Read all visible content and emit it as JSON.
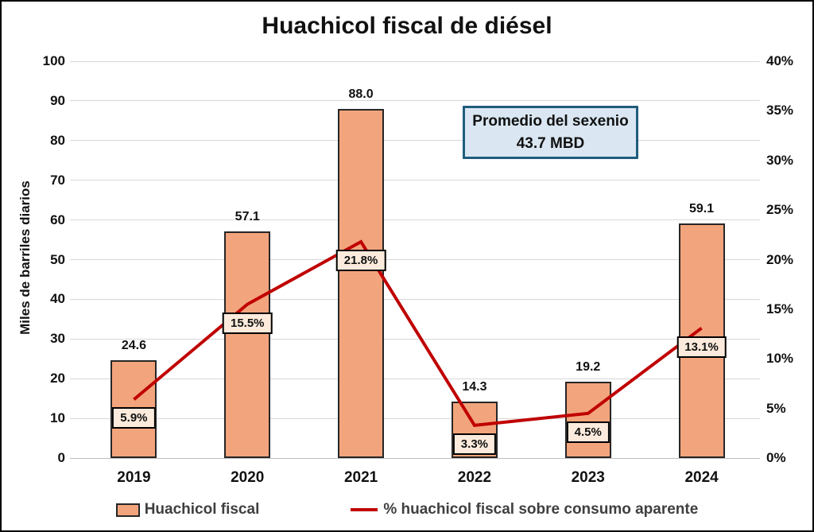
{
  "title": "Huachicol fiscal de diésel",
  "y_left_title": "Miles de barriles diarios",
  "annotation": {
    "line1": "Promedio del sexenio",
    "line2": "43.7 MBD"
  },
  "legend": [
    {
      "label": "Huachicol fiscal",
      "type": "bar"
    },
    {
      "label": "% huachicol fiscal sobre consumo aparente",
      "type": "line"
    }
  ],
  "colors": {
    "bar_fill": "#F2A47C",
    "bar_border": "#262626",
    "line": "#C00000",
    "pct_label_fill": "#FCEBDC",
    "pct_label_border": "#000000",
    "annotation_fill": "#DAE7F2",
    "annotation_border": "#1F5C7D",
    "gridline": "#D8D8D8",
    "axis_line": "#BFBFBF",
    "legend_text": "#3F3F3F"
  },
  "chart_data": {
    "type": "bar",
    "subtype": "bar-with-line-overlay",
    "categories": [
      "2019",
      "2020",
      "2021",
      "2022",
      "2023",
      "2024"
    ],
    "series": [
      {
        "name": "Huachicol fiscal",
        "type": "bar",
        "axis": "left",
        "values": [
          24.6,
          57.1,
          88.0,
          14.3,
          19.2,
          59.1
        ],
        "labels": [
          "24.6",
          "57.1",
          "88.0",
          "14.3",
          "19.2",
          "59.1"
        ]
      },
      {
        "name": "% huachicol fiscal sobre consumo aparente",
        "type": "line",
        "axis": "right",
        "values": [
          5.9,
          15.5,
          21.8,
          3.3,
          4.5,
          13.1
        ],
        "labels": [
          "5.9%",
          "15.5%",
          "21.8%",
          "3.3%",
          "4.5%",
          "13.1%"
        ]
      }
    ],
    "title": "Huachicol fiscal de diésel",
    "xlabel": "",
    "ylabel_left": "Miles de barriles diarios",
    "ylabel_right": "",
    "y_left": {
      "min": 0,
      "max": 100,
      "step": 10,
      "tick_labels": [
        "0",
        "10",
        "20",
        "30",
        "40",
        "50",
        "60",
        "70",
        "80",
        "90",
        "100"
      ]
    },
    "y_right": {
      "min": 0,
      "max": 40,
      "step": 5,
      "tick_labels": [
        "0%",
        "5%",
        "10%",
        "15%",
        "20%",
        "25%",
        "30%",
        "35%",
        "40%"
      ]
    },
    "grid": "horizontal",
    "legend_position": "bottom",
    "annotation_text": "Promedio del sexenio 43.7 MBD"
  }
}
